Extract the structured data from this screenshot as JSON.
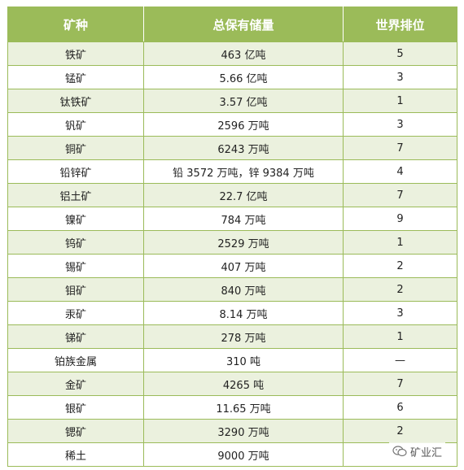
{
  "table": {
    "headers": [
      "矿种",
      "总保有储量",
      "世界排位"
    ],
    "rows": [
      {
        "mineral": "铁矿",
        "reserve": "463 亿吨",
        "rank": "5"
      },
      {
        "mineral": "锰矿",
        "reserve": "5.66 亿吨",
        "rank": "3"
      },
      {
        "mineral": "钛铁矿",
        "reserve": "3.57 亿吨",
        "rank": "1"
      },
      {
        "mineral": "钒矿",
        "reserve": "2596 万吨",
        "rank": "3"
      },
      {
        "mineral": "铜矿",
        "reserve": "6243 万吨",
        "rank": "7"
      },
      {
        "mineral": "铅锌矿",
        "reserve": "铅 3572 万吨，锌 9384 万吨",
        "rank": "4"
      },
      {
        "mineral": "铝土矿",
        "reserve": "22.7 亿吨",
        "rank": "7"
      },
      {
        "mineral": "镍矿",
        "reserve": "784 万吨",
        "rank": "9"
      },
      {
        "mineral": "钨矿",
        "reserve": "2529 万吨",
        "rank": "1"
      },
      {
        "mineral": "锡矿",
        "reserve": "407 万吨",
        "rank": "2"
      },
      {
        "mineral": "钼矿",
        "reserve": "840 万吨",
        "rank": "2"
      },
      {
        "mineral": "汞矿",
        "reserve": "8.14 万吨",
        "rank": "3"
      },
      {
        "mineral": "锑矿",
        "reserve": "278 万吨",
        "rank": "1"
      },
      {
        "mineral": "铂族金属",
        "reserve": "310 吨",
        "rank": "—"
      },
      {
        "mineral": "金矿",
        "reserve": "4265 吨",
        "rank": "7"
      },
      {
        "mineral": "银矿",
        "reserve": "11.65 万吨",
        "rank": "6"
      },
      {
        "mineral": "锶矿",
        "reserve": "3290 万吨",
        "rank": "2"
      },
      {
        "mineral": "稀土",
        "reserve": "9000 万吨",
        "rank": ""
      }
    ]
  },
  "watermark": {
    "text": "矿业汇",
    "icon": "wechat-icon"
  }
}
